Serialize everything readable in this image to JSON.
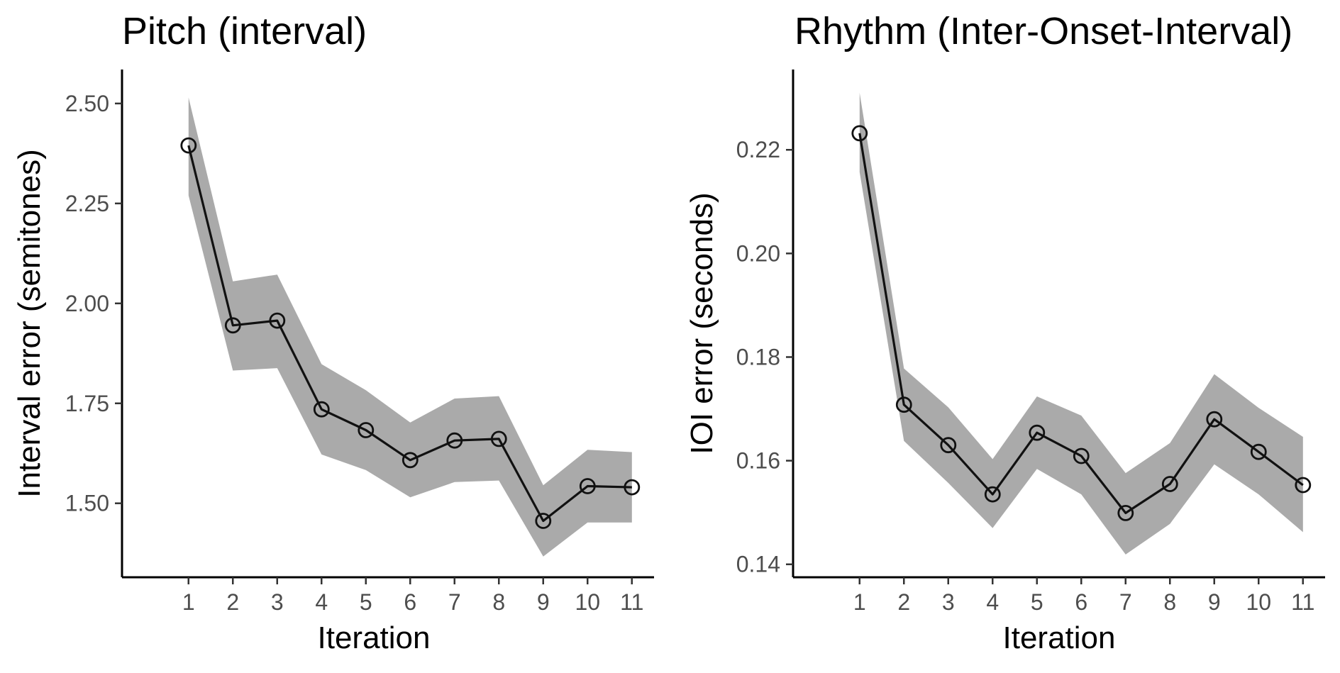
{
  "colors": {
    "band": "#aaaaaa",
    "line": "#111111",
    "axis": "#000000",
    "tick_label": "#4d4d4d"
  },
  "chart_data": [
    {
      "type": "line",
      "title": "Pitch (interval)",
      "xlabel": "Iteration",
      "ylabel": "Interval error (semitones)",
      "x": [
        1,
        2,
        3,
        4,
        5,
        6,
        7,
        8,
        9,
        10,
        11
      ],
      "x_ticks": [
        "1",
        "2",
        "3",
        "4",
        "5",
        "6",
        "7",
        "8",
        "9",
        "10",
        "11"
      ],
      "y": [
        2.395,
        1.945,
        1.957,
        1.735,
        1.683,
        1.608,
        1.657,
        1.661,
        1.456,
        1.543,
        1.54
      ],
      "ci_upper": [
        2.515,
        2.055,
        2.072,
        1.848,
        1.783,
        1.702,
        1.762,
        1.768,
        1.545,
        1.634,
        1.628
      ],
      "ci_lower": [
        2.27,
        1.832,
        1.838,
        1.622,
        1.583,
        1.515,
        1.553,
        1.557,
        1.367,
        1.452,
        1.452
      ],
      "y_ticks": [
        "2.50",
        "2.25",
        "2.00",
        "1.75",
        "1.50"
      ],
      "y_tick_values": [
        2.5,
        2.25,
        2.0,
        1.75,
        1.5
      ],
      "xlim": [
        -0.5,
        11.5
      ],
      "ylim": [
        1.315,
        2.585
      ],
      "grid": false,
      "legend": "none"
    },
    {
      "type": "line",
      "title": "Rhythm (Inter-Onset-Interval)",
      "xlabel": "Iteration",
      "ylabel": "IOI error (seconds)",
      "x": [
        1,
        2,
        3,
        4,
        5,
        6,
        7,
        8,
        9,
        10,
        11
      ],
      "x_ticks": [
        "1",
        "2",
        "3",
        "4",
        "5",
        "6",
        "7",
        "8",
        "9",
        "10",
        "11"
      ],
      "y": [
        0.2232,
        0.1708,
        0.163,
        0.1535,
        0.1654,
        0.1609,
        0.1499,
        0.1555,
        0.168,
        0.1617,
        0.1553
      ],
      "ci_upper": [
        0.231,
        0.1778,
        0.1703,
        0.1603,
        0.1724,
        0.1687,
        0.1576,
        0.1634,
        0.1767,
        0.1702,
        0.1646
      ],
      "ci_lower": [
        0.2157,
        0.1638,
        0.1557,
        0.147,
        0.1584,
        0.1535,
        0.1419,
        0.1478,
        0.1593,
        0.1535,
        0.1462
      ],
      "y_ticks": [
        "0.22",
        "0.20",
        "0.18",
        "0.16",
        "0.14"
      ],
      "y_tick_values": [
        0.22,
        0.2,
        0.18,
        0.16,
        0.14
      ],
      "xlim": [
        -0.5,
        11.5
      ],
      "ylim": [
        0.1375,
        0.2355
      ],
      "grid": false,
      "legend": "none"
    }
  ]
}
